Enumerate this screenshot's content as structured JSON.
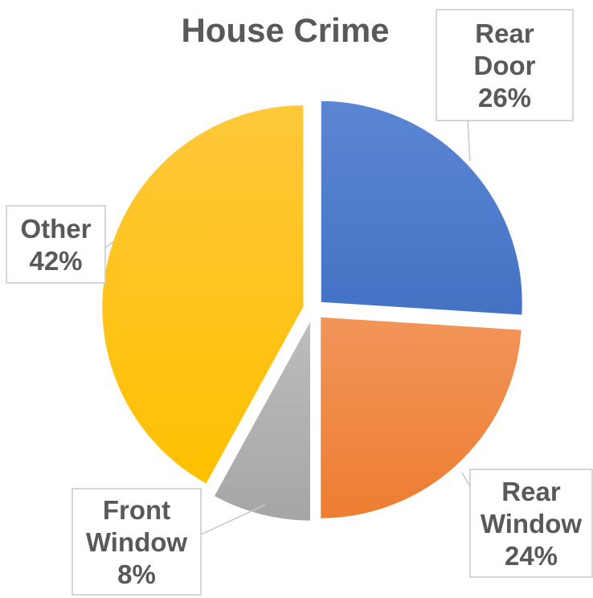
{
  "chart_data": {
    "type": "pie",
    "title": "House Crime",
    "slices": [
      {
        "label_lines": [
          "Rear",
          "Door"
        ],
        "value_label": "26%",
        "value": 26,
        "color": "#4472C4",
        "color_light": "#5B86D4"
      },
      {
        "label_lines": [
          "Rear",
          "Window"
        ],
        "value_label": "24%",
        "value": 24,
        "color": "#ED7D31",
        "color_light": "#F2955A"
      },
      {
        "label_lines": [
          "Front",
          "Window"
        ],
        "value_label": "8%",
        "value": 8,
        "color": "#A5A5A5",
        "color_light": "#BDBDBD"
      },
      {
        "label_lines": [
          "Other"
        ],
        "value_label": "42%",
        "value": 42,
        "color": "#FFC000",
        "color_light": "#FFC83A"
      }
    ],
    "exploded": true,
    "legend": "none"
  }
}
